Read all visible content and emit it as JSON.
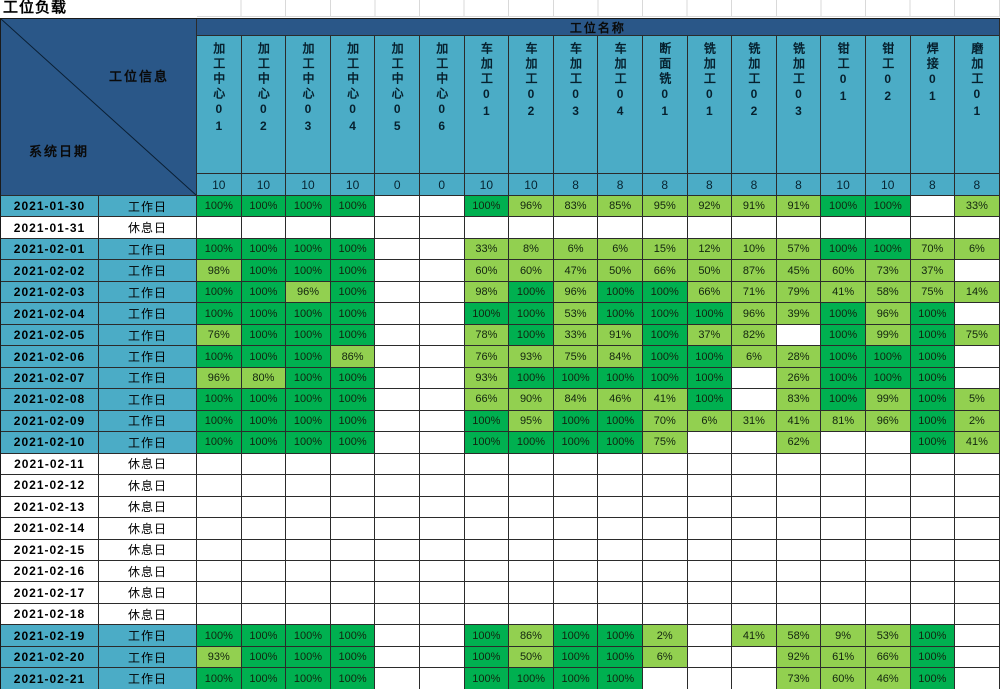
{
  "title": "工位负载",
  "corner": {
    "top_label": "工位信息",
    "bottom_label": "系统日期"
  },
  "band_label": "工位名称",
  "colors": {
    "header_blue": "#4BACC6",
    "band_navy": "#2A5788",
    "full_load_green": "#00B050",
    "partial_load_green": "#92D050"
  },
  "day_types": {
    "workday": "工作日",
    "restday": "休息日"
  },
  "columns": [
    {
      "name": "加工中心01",
      "capacity": "10"
    },
    {
      "name": "加工中心02",
      "capacity": "10"
    },
    {
      "name": "加工中心03",
      "capacity": "10"
    },
    {
      "name": "加工中心04",
      "capacity": "10"
    },
    {
      "name": "加工中心05",
      "capacity": "0"
    },
    {
      "name": "加工中心06",
      "capacity": "0"
    },
    {
      "name": "车加工01",
      "capacity": "10"
    },
    {
      "name": "车加工02",
      "capacity": "10"
    },
    {
      "name": "车加工03",
      "capacity": "8"
    },
    {
      "name": "车加工04",
      "capacity": "8"
    },
    {
      "name": "断面铣01",
      "capacity": "8"
    },
    {
      "name": "铣加工01",
      "capacity": "8"
    },
    {
      "name": "铣加工02",
      "capacity": "8"
    },
    {
      "name": "铣加工03",
      "capacity": "8"
    },
    {
      "name": "钳工01",
      "capacity": "10"
    },
    {
      "name": "钳工02",
      "capacity": "10"
    },
    {
      "name": "焊接01",
      "capacity": "8"
    },
    {
      "name": "磨加工01",
      "capacity": "8"
    }
  ],
  "rows": [
    {
      "date": "2021-01-30",
      "type": "工作日",
      "values": [
        "100%",
        "100%",
        "100%",
        "100%",
        "",
        "",
        "100%",
        "96%",
        "83%",
        "85%",
        "95%",
        "92%",
        "91%",
        "91%",
        "100%",
        "100%",
        "",
        "33%"
      ]
    },
    {
      "date": "2021-01-31",
      "type": "休息日",
      "values": [
        "",
        "",
        "",
        "",
        "",
        "",
        "",
        "",
        "",
        "",
        "",
        "",
        "",
        "",
        "",
        "",
        "",
        ""
      ]
    },
    {
      "date": "2021-02-01",
      "type": "工作日",
      "values": [
        "100%",
        "100%",
        "100%",
        "100%",
        "",
        "",
        "33%",
        "8%",
        "6%",
        "6%",
        "15%",
        "12%",
        "10%",
        "57%",
        "100%",
        "100%",
        "70%",
        "6%"
      ]
    },
    {
      "date": "2021-02-02",
      "type": "工作日",
      "values": [
        "98%",
        "100%",
        "100%",
        "100%",
        "",
        "",
        "60%",
        "60%",
        "47%",
        "50%",
        "66%",
        "50%",
        "87%",
        "45%",
        "60%",
        "73%",
        "37%",
        ""
      ]
    },
    {
      "date": "2021-02-03",
      "type": "工作日",
      "values": [
        "100%",
        "100%",
        "96%",
        "100%",
        "",
        "",
        "98%",
        "100%",
        "96%",
        "100%",
        "100%",
        "66%",
        "71%",
        "79%",
        "41%",
        "58%",
        "75%",
        "14%"
      ]
    },
    {
      "date": "2021-02-04",
      "type": "工作日",
      "values": [
        "100%",
        "100%",
        "100%",
        "100%",
        "",
        "",
        "100%",
        "100%",
        "53%",
        "100%",
        "100%",
        "100%",
        "96%",
        "39%",
        "100%",
        "96%",
        "100%",
        ""
      ]
    },
    {
      "date": "2021-02-05",
      "type": "工作日",
      "values": [
        "76%",
        "100%",
        "100%",
        "100%",
        "",
        "",
        "78%",
        "100%",
        "33%",
        "91%",
        "100%",
        "37%",
        "82%",
        "",
        "100%",
        "99%",
        "100%",
        "75%"
      ]
    },
    {
      "date": "2021-02-06",
      "type": "工作日",
      "values": [
        "100%",
        "100%",
        "100%",
        "86%",
        "",
        "",
        "76%",
        "93%",
        "75%",
        "84%",
        "100%",
        "100%",
        "6%",
        "28%",
        "100%",
        "100%",
        "100%",
        ""
      ]
    },
    {
      "date": "2021-02-07",
      "type": "工作日",
      "values": [
        "96%",
        "80%",
        "100%",
        "100%",
        "",
        "",
        "93%",
        "100%",
        "100%",
        "100%",
        "100%",
        "100%",
        "",
        "26%",
        "100%",
        "100%",
        "100%",
        ""
      ]
    },
    {
      "date": "2021-02-08",
      "type": "工作日",
      "values": [
        "100%",
        "100%",
        "100%",
        "100%",
        "",
        "",
        "66%",
        "90%",
        "84%",
        "46%",
        "41%",
        "100%",
        "",
        "83%",
        "100%",
        "99%",
        "100%",
        "5%"
      ]
    },
    {
      "date": "2021-02-09",
      "type": "工作日",
      "values": [
        "100%",
        "100%",
        "100%",
        "100%",
        "",
        "",
        "100%",
        "95%",
        "100%",
        "100%",
        "70%",
        "6%",
        "31%",
        "41%",
        "81%",
        "96%",
        "100%",
        "2%"
      ]
    },
    {
      "date": "2021-02-10",
      "type": "工作日",
      "values": [
        "100%",
        "100%",
        "100%",
        "100%",
        "",
        "",
        "100%",
        "100%",
        "100%",
        "100%",
        "75%",
        "",
        "",
        "62%",
        "",
        "",
        "100%",
        "41%"
      ]
    },
    {
      "date": "2021-02-11",
      "type": "休息日",
      "values": [
        "",
        "",
        "",
        "",
        "",
        "",
        "",
        "",
        "",
        "",
        "",
        "",
        "",
        "",
        "",
        "",
        "",
        ""
      ]
    },
    {
      "date": "2021-02-12",
      "type": "休息日",
      "values": [
        "",
        "",
        "",
        "",
        "",
        "",
        "",
        "",
        "",
        "",
        "",
        "",
        "",
        "",
        "",
        "",
        "",
        ""
      ]
    },
    {
      "date": "2021-02-13",
      "type": "休息日",
      "values": [
        "",
        "",
        "",
        "",
        "",
        "",
        "",
        "",
        "",
        "",
        "",
        "",
        "",
        "",
        "",
        "",
        "",
        ""
      ]
    },
    {
      "date": "2021-02-14",
      "type": "休息日",
      "values": [
        "",
        "",
        "",
        "",
        "",
        "",
        "",
        "",
        "",
        "",
        "",
        "",
        "",
        "",
        "",
        "",
        "",
        ""
      ]
    },
    {
      "date": "2021-02-15",
      "type": "休息日",
      "values": [
        "",
        "",
        "",
        "",
        "",
        "",
        "",
        "",
        "",
        "",
        "",
        "",
        "",
        "",
        "",
        "",
        "",
        ""
      ]
    },
    {
      "date": "2021-02-16",
      "type": "休息日",
      "values": [
        "",
        "",
        "",
        "",
        "",
        "",
        "",
        "",
        "",
        "",
        "",
        "",
        "",
        "",
        "",
        "",
        "",
        ""
      ]
    },
    {
      "date": "2021-02-17",
      "type": "休息日",
      "values": [
        "",
        "",
        "",
        "",
        "",
        "",
        "",
        "",
        "",
        "",
        "",
        "",
        "",
        "",
        "",
        "",
        "",
        ""
      ]
    },
    {
      "date": "2021-02-18",
      "type": "休息日",
      "values": [
        "",
        "",
        "",
        "",
        "",
        "",
        "",
        "",
        "",
        "",
        "",
        "",
        "",
        "",
        "",
        "",
        "",
        ""
      ]
    },
    {
      "date": "2021-02-19",
      "type": "工作日",
      "values": [
        "100%",
        "100%",
        "100%",
        "100%",
        "",
        "",
        "100%",
        "86%",
        "100%",
        "100%",
        "2%",
        "",
        "41%",
        "58%",
        "9%",
        "53%",
        "100%",
        ""
      ]
    },
    {
      "date": "2021-02-20",
      "type": "工作日",
      "values": [
        "93%",
        "100%",
        "100%",
        "100%",
        "",
        "",
        "100%",
        "50%",
        "100%",
        "100%",
        "6%",
        "",
        "",
        "92%",
        "61%",
        "66%",
        "100%",
        ""
      ]
    },
    {
      "date": "2021-02-21",
      "type": "工作日",
      "values": [
        "100%",
        "100%",
        "100%",
        "100%",
        "",
        "",
        "100%",
        "100%",
        "100%",
        "100%",
        "",
        "",
        "",
        "73%",
        "60%",
        "46%",
        "100%",
        ""
      ]
    }
  ]
}
